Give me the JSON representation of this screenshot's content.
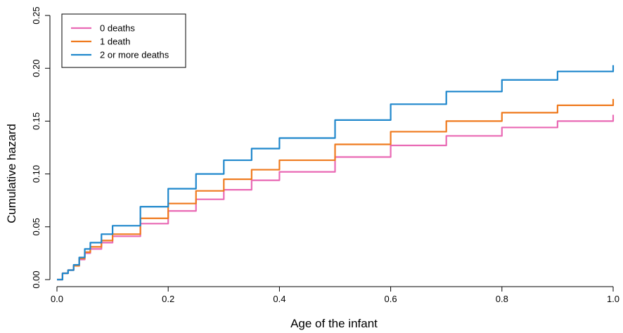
{
  "chart_data": {
    "type": "line",
    "title": "",
    "xlabel": "Age of the infant",
    "ylabel": "Cumulative hazard",
    "xlim": [
      0,
      1
    ],
    "ylim": [
      0,
      0.25
    ],
    "xticks": [
      "0.0",
      "0.2",
      "0.4",
      "0.6",
      "0.8",
      "1.0"
    ],
    "yticks": [
      "0.00",
      "0.05",
      "0.10",
      "0.15",
      "0.20",
      "0.25"
    ],
    "grid": false,
    "legend_position": "top-left",
    "series": [
      {
        "name": "0 deaths",
        "color": "#e969b4",
        "x": [
          0,
          0.01,
          0.02,
          0.03,
          0.04,
          0.05,
          0.06,
          0.08,
          0.1,
          0.15,
          0.2,
          0.25,
          0.3,
          0.35,
          0.4,
          0.5,
          0.6,
          0.7,
          0.8,
          0.9,
          1.0
        ],
        "y": [
          0,
          0.006,
          0.009,
          0.013,
          0.019,
          0.025,
          0.029,
          0.035,
          0.041,
          0.053,
          0.065,
          0.076,
          0.085,
          0.094,
          0.102,
          0.116,
          0.127,
          0.136,
          0.144,
          0.15,
          0.156
        ]
      },
      {
        "name": "1 death",
        "color": "#ef7a1e",
        "x": [
          0,
          0.01,
          0.02,
          0.03,
          0.04,
          0.05,
          0.06,
          0.08,
          0.1,
          0.15,
          0.2,
          0.25,
          0.3,
          0.35,
          0.4,
          0.5,
          0.6,
          0.7,
          0.8,
          0.9,
          1.0
        ],
        "y": [
          0,
          0.006,
          0.009,
          0.013,
          0.02,
          0.026,
          0.031,
          0.037,
          0.043,
          0.058,
          0.072,
          0.084,
          0.095,
          0.104,
          0.113,
          0.128,
          0.14,
          0.15,
          0.158,
          0.165,
          0.171
        ]
      },
      {
        "name": "2 or more deaths",
        "color": "#1f87cc",
        "x": [
          0,
          0.01,
          0.02,
          0.03,
          0.04,
          0.05,
          0.06,
          0.08,
          0.1,
          0.15,
          0.2,
          0.25,
          0.3,
          0.35,
          0.4,
          0.5,
          0.6,
          0.7,
          0.8,
          0.9,
          1.0
        ],
        "y": [
          0,
          0.006,
          0.009,
          0.014,
          0.021,
          0.029,
          0.035,
          0.043,
          0.051,
          0.069,
          0.086,
          0.1,
          0.113,
          0.124,
          0.134,
          0.151,
          0.166,
          0.178,
          0.189,
          0.197,
          0.203
        ]
      }
    ]
  }
}
